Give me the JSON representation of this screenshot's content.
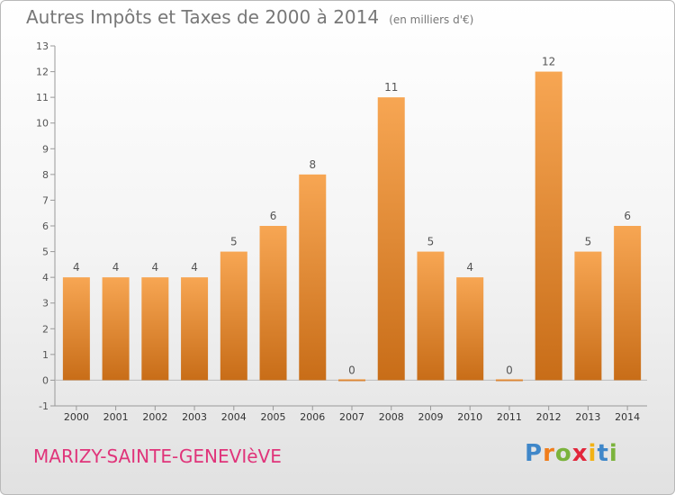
{
  "title": {
    "main": "Autres Impôts et Taxes de 2000 à 2014",
    "unit": "(en milliers d'€)"
  },
  "commune": "MARIZY-SAINTE-GENEVIèVE",
  "logo": {
    "text": "Proxiti",
    "letters": [
      {
        "char": "P",
        "color": "#3f87c9"
      },
      {
        "char": "r",
        "color": "#f07d1b"
      },
      {
        "char": "o",
        "color": "#7bb33c"
      },
      {
        "char": "x",
        "color": "#e2263b"
      },
      {
        "char": "i",
        "color": "#f2b215"
      },
      {
        "char": "t",
        "color": "#3f87c9"
      },
      {
        "char": "i",
        "color": "#7bb33c"
      }
    ]
  },
  "colors": {
    "bar_light": "#f7a653",
    "bar_dark": "#c86d18",
    "axis": "#999999",
    "text": "#555555",
    "grid": "#bbbbbb"
  },
  "chart_data": {
    "type": "bar",
    "title": "Autres Impôts et Taxes de 2000 à 2014",
    "ylabel": "",
    "xlabel": "",
    "categories": [
      "2000",
      "2001",
      "2002",
      "2003",
      "2004",
      "2005",
      "2006",
      "2007",
      "2008",
      "2009",
      "2010",
      "2011",
      "2012",
      "2013",
      "2014"
    ],
    "values": [
      4,
      4,
      4,
      4,
      5,
      6,
      8,
      0,
      11,
      5,
      4,
      0,
      12,
      5,
      6
    ],
    "ylim": [
      -1,
      13
    ],
    "yticks": [
      -1,
      0,
      1,
      2,
      3,
      4,
      5,
      6,
      7,
      8,
      9,
      10,
      11,
      12,
      13
    ],
    "grid": false
  }
}
